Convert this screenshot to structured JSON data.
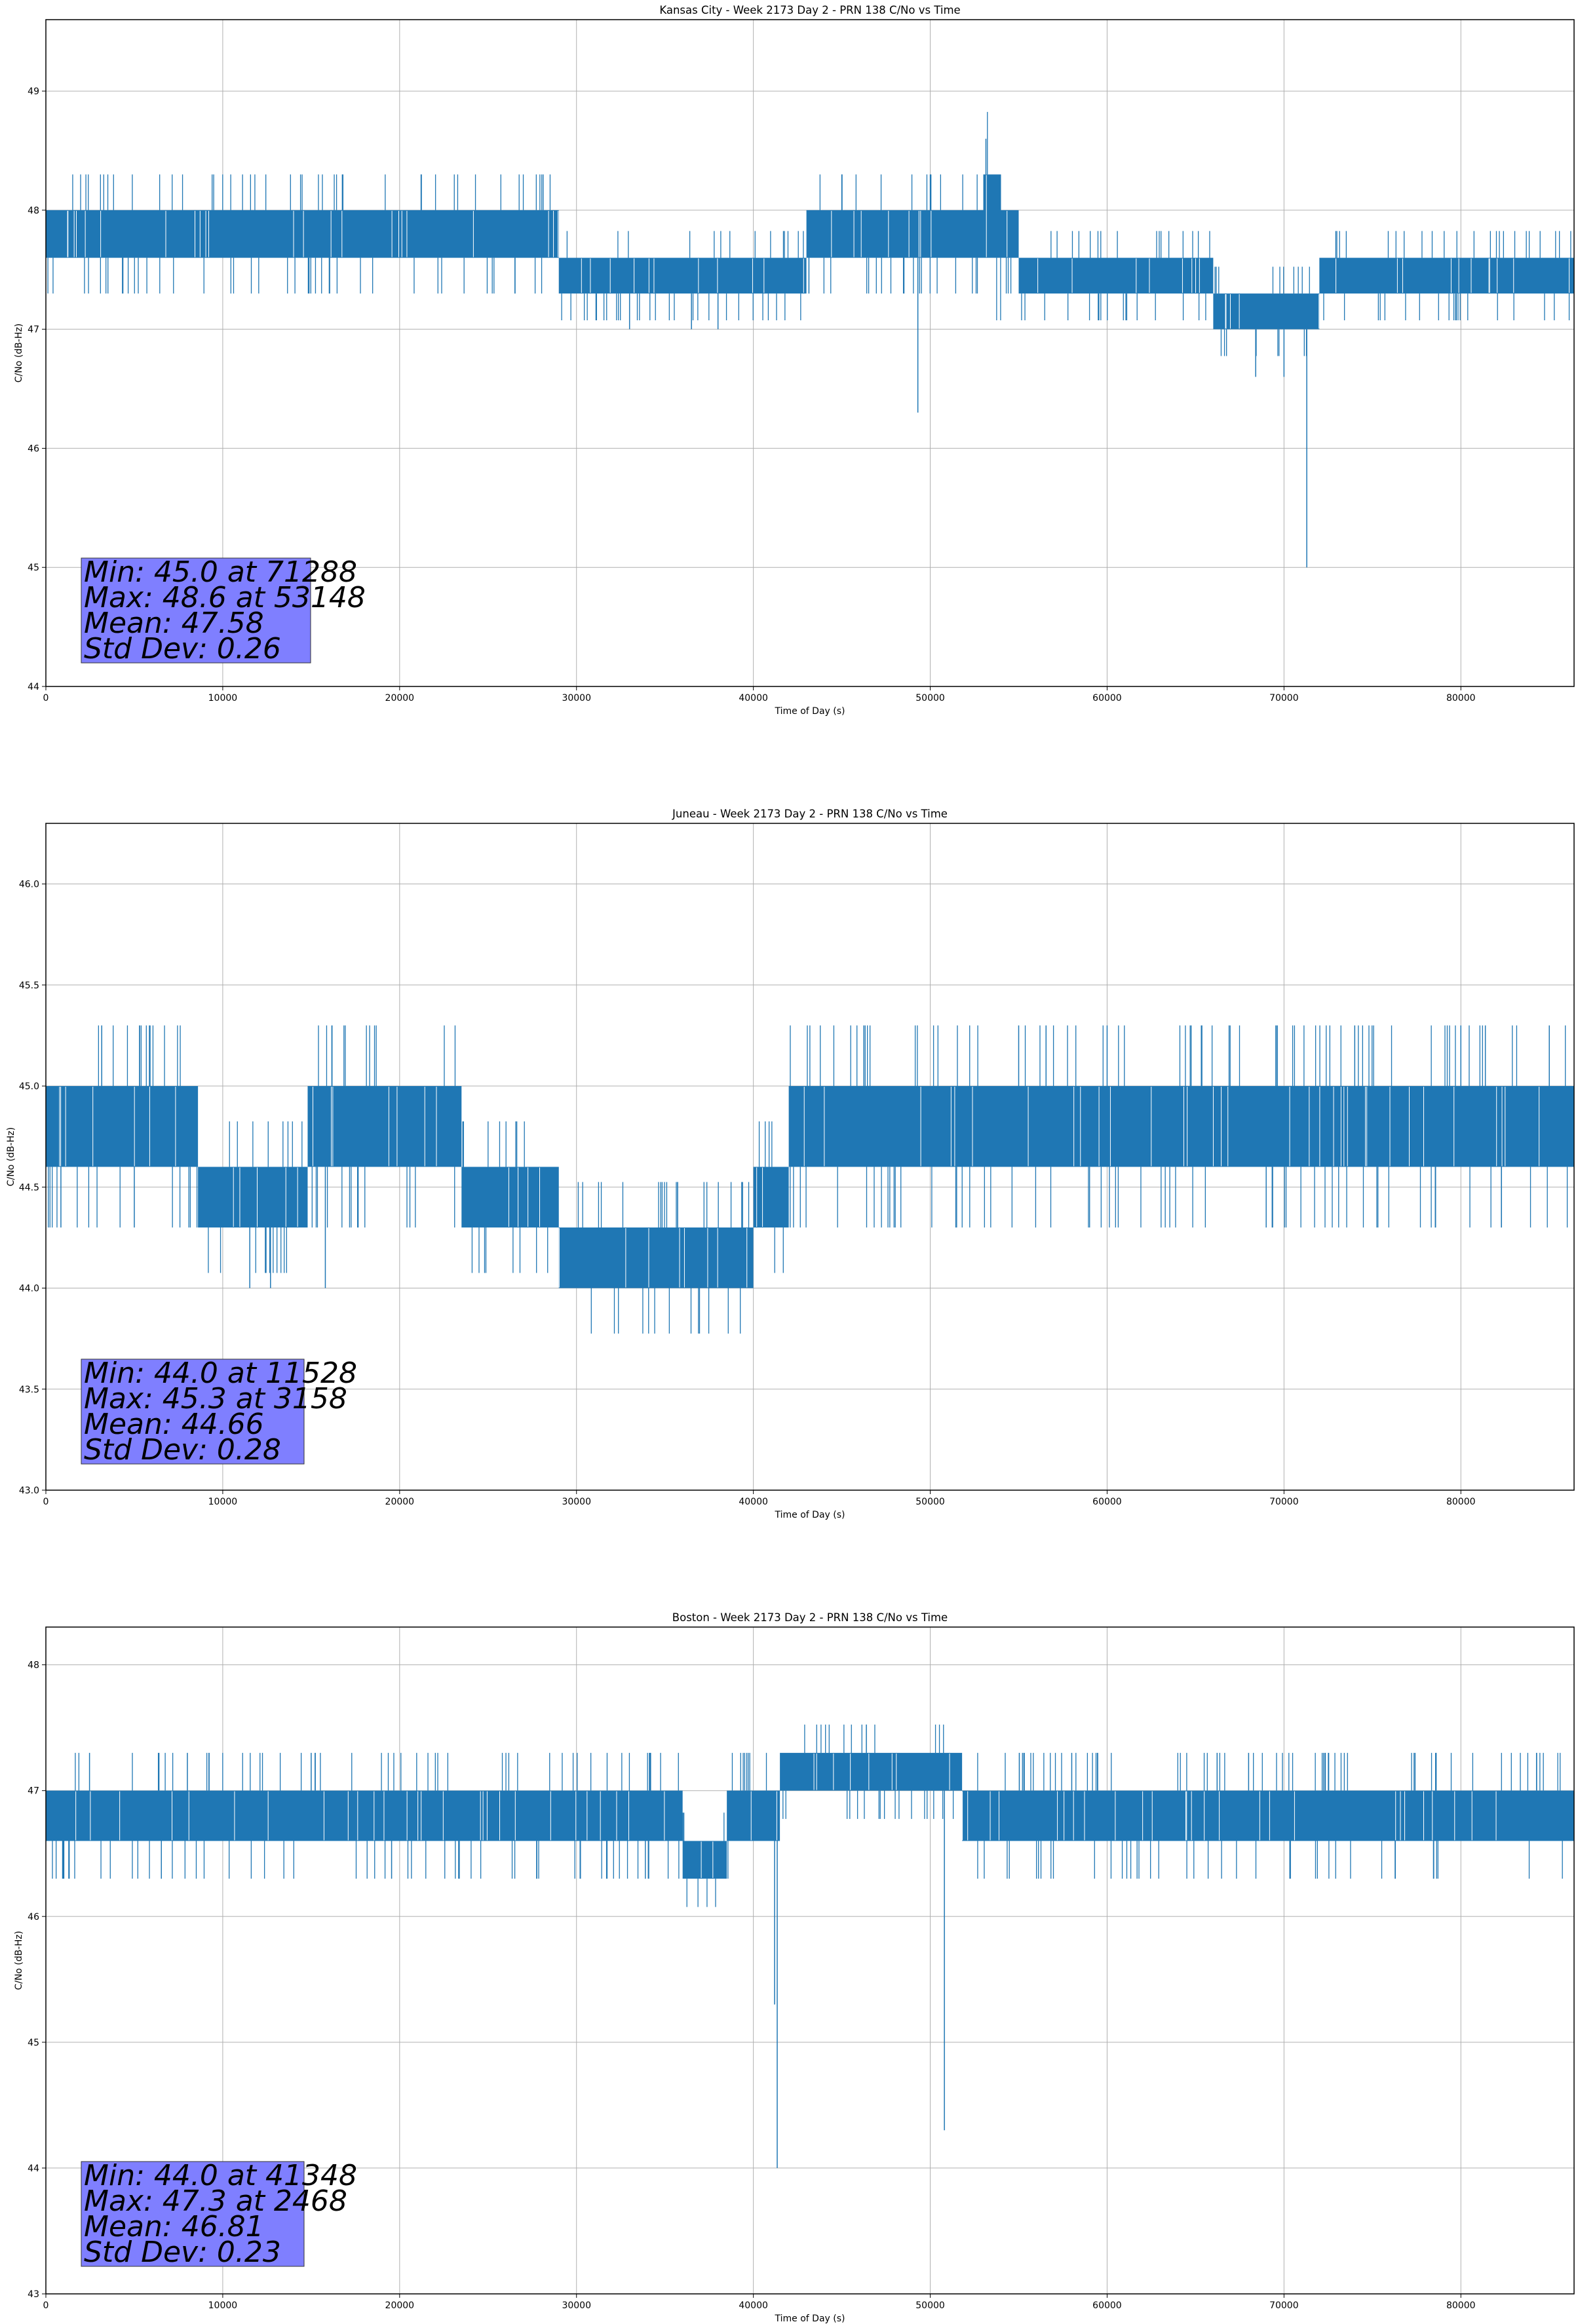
{
  "chart_data": [
    {
      "type": "line",
      "title": "Kansas City - Week 2173 Day 2 - PRN 138 C/No vs Time",
      "xlabel": "Time of Day (s)",
      "ylabel": "C/No (dB-Hz)",
      "xlim": [
        0,
        86400
      ],
      "ylim": [
        44,
        49.6
      ],
      "xticks": [
        0,
        10000,
        20000,
        30000,
        40000,
        50000,
        60000,
        70000,
        80000
      ],
      "yticks": [
        44,
        45,
        46,
        47,
        48,
        49
      ],
      "ytick_labels": [
        "44",
        "45",
        "46",
        "47",
        "48",
        "49"
      ],
      "grid": true,
      "color": "#1f77b4",
      "stats": {
        "min": "Min: 45.0 at 71288",
        "max": "Max: 48.6 at 53148",
        "mean": "Mean: 47.58",
        "std": "Std Dev: 0.26"
      },
      "band_segments": [
        {
          "x": [
            0,
            14000
          ],
          "y": [
            47.6,
            48.0
          ]
        },
        {
          "x": [
            14000,
            29000
          ],
          "y": [
            47.6,
            48.0
          ]
        },
        {
          "x": [
            29000,
            43000
          ],
          "y": [
            47.3,
            47.6
          ]
        },
        {
          "x": [
            43000,
            53000
          ],
          "y": [
            47.6,
            48.0
          ]
        },
        {
          "x": [
            53000,
            54000
          ],
          "y": [
            47.6,
            48.3
          ]
        },
        {
          "x": [
            54000,
            55000
          ],
          "y": [
            47.6,
            48.0
          ]
        },
        {
          "x": [
            55000,
            66000
          ],
          "y": [
            47.3,
            47.6
          ]
        },
        {
          "x": [
            66000,
            72000
          ],
          "y": [
            47.0,
            47.3
          ]
        },
        {
          "x": [
            72000,
            86400
          ],
          "y": [
            47.3,
            47.6
          ]
        }
      ],
      "spikes": [
        {
          "x": 49300,
          "y": 46.3
        },
        {
          "x": 71288,
          "y": 45.0
        },
        {
          "x": 68400,
          "y": 46.6
        },
        {
          "x": 70000,
          "y": 46.6
        },
        {
          "x": 33000,
          "y": 47.0
        },
        {
          "x": 36500,
          "y": 47.0
        },
        {
          "x": 38000,
          "y": 47.0
        }
      ],
      "peaks": [
        {
          "x": 53148,
          "y": 48.6
        },
        {
          "x": 45000,
          "y": 48.3
        },
        {
          "x": 50000,
          "y": 48.3
        }
      ]
    },
    {
      "type": "line",
      "title": "Juneau - Week 2173 Day 2 - PRN 138 C/No vs Time",
      "xlabel": "Time of Day (s)",
      "ylabel": "C/No (dB-Hz)",
      "xlim": [
        0,
        86400
      ],
      "ylim": [
        43.0,
        46.3
      ],
      "xticks": [
        0,
        10000,
        20000,
        30000,
        40000,
        50000,
        60000,
        70000,
        80000
      ],
      "yticks": [
        43.0,
        43.5,
        44.0,
        44.5,
        45.0,
        45.5,
        46.0
      ],
      "ytick_labels": [
        "43.0",
        "43.5",
        "44.0",
        "44.5",
        "45.0",
        "45.5",
        "46.0"
      ],
      "grid": true,
      "color": "#1f77b4",
      "stats": {
        "min": "Min: 44.0 at 11528",
        "max": "Max: 45.3 at 3158",
        "mean": "Mean: 44.66",
        "std": "Std Dev: 0.28"
      },
      "band_segments": [
        {
          "x": [
            0,
            8600
          ],
          "y": [
            44.6,
            45.0
          ]
        },
        {
          "x": [
            8600,
            14800
          ],
          "y": [
            44.3,
            44.6
          ]
        },
        {
          "x": [
            14800,
            23500
          ],
          "y": [
            44.6,
            45.0
          ]
        },
        {
          "x": [
            23500,
            29000
          ],
          "y": [
            44.3,
            44.6
          ]
        },
        {
          "x": [
            29000,
            40000
          ],
          "y": [
            44.0,
            44.3
          ]
        },
        {
          "x": [
            40000,
            42000
          ],
          "y": [
            44.3,
            44.6
          ]
        },
        {
          "x": [
            42000,
            86400
          ],
          "y": [
            44.6,
            45.0
          ]
        }
      ],
      "spikes": [
        {
          "x": 11528,
          "y": 44.0
        },
        {
          "x": 12700,
          "y": 44.0
        },
        {
          "x": 15800,
          "y": 44.0
        },
        {
          "x": 850,
          "y": 44.3
        },
        {
          "x": 5000,
          "y": 44.3
        }
      ],
      "peaks": [
        {
          "x": 3158,
          "y": 45.3
        },
        {
          "x": 55000,
          "y": 45.3
        },
        {
          "x": 60000,
          "y": 45.3
        },
        {
          "x": 74000,
          "y": 45.3
        },
        {
          "x": 80000,
          "y": 45.3
        },
        {
          "x": 85000,
          "y": 45.3
        }
      ]
    },
    {
      "type": "line",
      "title": "Boston - Week 2173 Day 2 - PRN 138 C/No vs Time",
      "xlabel": "Time of Day (s)",
      "ylabel": "C/No (dB-Hz)",
      "xlim": [
        0,
        86400
      ],
      "ylim": [
        43,
        48.3
      ],
      "xticks": [
        0,
        10000,
        20000,
        30000,
        40000,
        50000,
        60000,
        70000,
        80000
      ],
      "yticks": [
        43,
        44,
        45,
        46,
        47,
        48
      ],
      "ytick_labels": [
        "43",
        "44",
        "45",
        "46",
        "47",
        "48"
      ],
      "grid": true,
      "color": "#1f77b4",
      "stats": {
        "min": "Min: 44.0 at 41348",
        "max": "Max: 47.3 at 2468",
        "mean": "Mean: 46.81",
        "std": "Std Dev: 0.23"
      },
      "band_segments": [
        {
          "x": [
            0,
            36000
          ],
          "y": [
            46.6,
            47.0
          ]
        },
        {
          "x": [
            36000,
            38500
          ],
          "y": [
            46.3,
            46.6
          ]
        },
        {
          "x": [
            38500,
            41500
          ],
          "y": [
            46.6,
            47.0
          ]
        },
        {
          "x": [
            41500,
            51800
          ],
          "y": [
            47.0,
            47.3
          ]
        },
        {
          "x": [
            51800,
            86400
          ],
          "y": [
            46.6,
            47.0
          ]
        }
      ],
      "spikes": [
        {
          "x": 41348,
          "y": 44.0
        },
        {
          "x": 41200,
          "y": 45.3
        },
        {
          "x": 50800,
          "y": 44.3
        }
      ],
      "peaks": [
        {
          "x": 2468,
          "y": 47.3
        },
        {
          "x": 8000,
          "y": 47.3
        },
        {
          "x": 15000,
          "y": 47.3
        },
        {
          "x": 58000,
          "y": 47.3
        },
        {
          "x": 68000,
          "y": 47.3
        }
      ]
    }
  ]
}
